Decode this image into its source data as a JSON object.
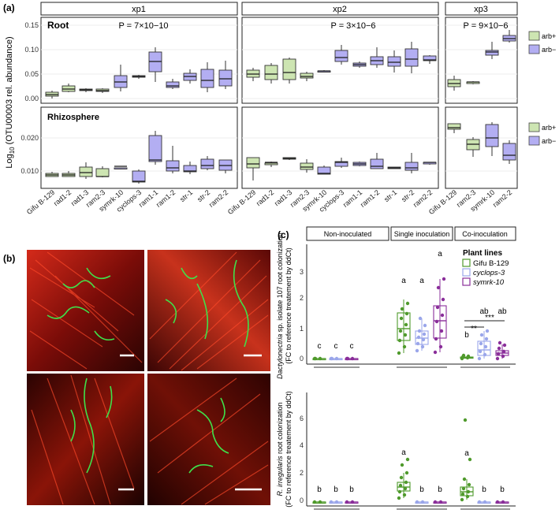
{
  "panel_a": {
    "label": "(a)",
    "strips": [
      "xp1",
      "xp2",
      "xp3"
    ],
    "ylabel": "Log10 (OTU00003 rel. abundance)",
    "ylabel_parts": {
      "pre": "Log",
      "sub": "10",
      "post": " (OTU00003 rel. abundance)"
    },
    "root": {
      "title": "Root",
      "pvalues": [
        "P = 7×10−10",
        "P = 3×10−6",
        "P = 9×10−6"
      ],
      "yticks": [
        "0.00",
        "0.05",
        "0.10",
        "0.15"
      ]
    },
    "rhizo": {
      "title": "Rhizosphere",
      "yticks": [
        "0.010",
        "0.020"
      ]
    },
    "legend": [
      "arb+",
      "arb−"
    ],
    "xticks": {
      "xp1": [
        "Gifu B-129",
        "rad1-2",
        "rad1-3",
        "ram2-3",
        "symrk-10",
        "cyclops-3",
        "ram1-1",
        "ram1-2",
        "str-1",
        "str-2",
        "ram2-2"
      ],
      "xp2": [
        "Gifu B-129",
        "rad1-2",
        "rad1-3",
        "ram2-3",
        "symrk-10",
        "cyclops-3",
        "ram1-1",
        "ram1-2",
        "str-1",
        "str-2",
        "ram2-2"
      ],
      "xp3": [
        "Gifu B-129",
        "ram2-3",
        "symrk-10",
        "ram2-2"
      ]
    }
  },
  "panel_b": {
    "label": "(b)"
  },
  "panel_c": {
    "label": "(c)",
    "strips": [
      "Non-inoculated",
      "Single inoculation",
      "Co-inoculation"
    ],
    "legend_title": "Plant lines",
    "legend": [
      "Gifu B-129",
      "cyclops-3",
      "symrk-10"
    ],
    "top": {
      "ylabel_italic": "Dactylonectria",
      "ylabel_rest": " sp. isolate 107 root colonization",
      "ylabel2": "(FC to reference treatement by ddCt)",
      "yticks": [
        "0",
        "1",
        "2",
        "3"
      ],
      "letters": [
        "c",
        "c",
        "c",
        "a",
        "a",
        "a",
        "b",
        "ab",
        "ab"
      ],
      "sig": [
        "**",
        "***"
      ]
    },
    "bottom": {
      "ylabel_italic": "R. irregularis",
      "ylabel_rest": " root colonization",
      "ylabel2": "(FC to reference treatement by ddCt)",
      "yticks": [
        "0",
        "2",
        "4",
        "6"
      ],
      "letters": [
        "b",
        "b",
        "b",
        "a",
        "b",
        "b",
        "a",
        "b",
        "b"
      ]
    }
  },
  "colors": {
    "arb_plus": "#cde5b2",
    "arb_minus": "#b3aef2",
    "gifu": "#4f9a2c",
    "cyclops": "#9aa6ea",
    "symrk": "#8a2e9a"
  }
}
